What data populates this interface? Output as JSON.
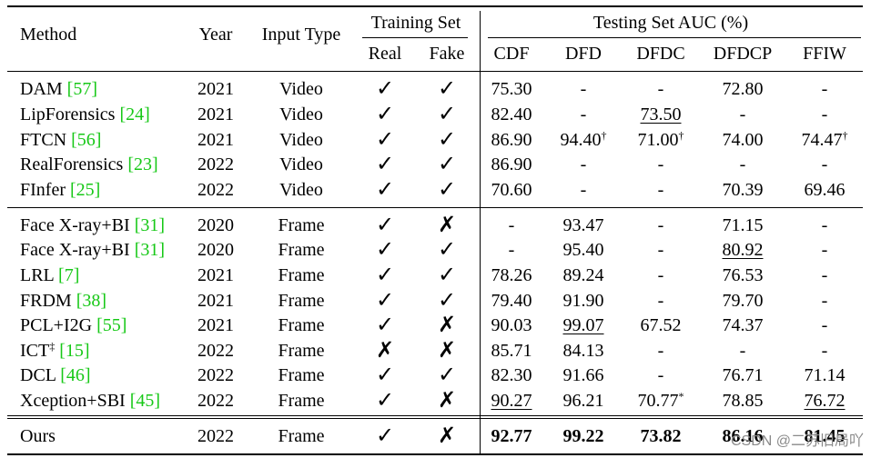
{
  "header": {
    "method": "Method",
    "year": "Year",
    "input_type": "Input Type",
    "training_set": "Training Set",
    "real": "Real",
    "fake": "Fake",
    "testing_set": "Testing Set AUC (%)",
    "datasets": [
      "CDF",
      "DFD",
      "DFDC",
      "DFDCP",
      "FFIW"
    ]
  },
  "video_rows": [
    {
      "method": "DAM ",
      "cite": "[57]",
      "year": "2021",
      "input": "Video",
      "real": "✓",
      "fake": "✓",
      "cdf": "75.30",
      "dfd": "-",
      "dfdc": "-",
      "dfdcp": "72.80",
      "ffiw": "-"
    },
    {
      "method": "LipForensics ",
      "cite": "[24]",
      "year": "2021",
      "input": "Video",
      "real": "✓",
      "fake": "✓",
      "cdf": "82.40",
      "dfd": "-",
      "dfdc": "73.50",
      "dfdcp": "-",
      "ffiw": "-"
    },
    {
      "method": "FTCN  ",
      "cite": "[56]",
      "year": "2021",
      "input": "Video",
      "real": "✓",
      "fake": "✓",
      "cdf": "86.90",
      "dfd": "94.40",
      "dfd_sup": "†",
      "dfdc": "71.00",
      "dfdc_sup": "†",
      "dfdcp": "74.00",
      "ffiw": "74.47",
      "ffiw_sup": "†"
    },
    {
      "method": "RealForensics ",
      "cite": "[23]",
      "year": "2022",
      "input": "Video",
      "real": "✓",
      "fake": "✓",
      "cdf": "86.90",
      "dfd": "-",
      "dfdc": "-",
      "dfdcp": "-",
      "ffiw": "-"
    },
    {
      "method": "FInfer ",
      "cite": "[25]",
      "year": "2022",
      "input": "Video",
      "real": "✓",
      "fake": "✓",
      "cdf": "70.60",
      "dfd": "-",
      "dfdc": "-",
      "dfdcp": "70.39",
      "ffiw": "69.46"
    }
  ],
  "frame_rows": [
    {
      "method": "Face X-ray+BI ",
      "cite": "[31]",
      "year": "2020",
      "input": "Frame",
      "real": "✓",
      "fake": "✗",
      "cdf": "-",
      "dfd": "93.47",
      "dfdc": "-",
      "dfdcp": "71.15",
      "ffiw": "-"
    },
    {
      "method": "Face X-ray+BI ",
      "cite": "[31]",
      "year": "2020",
      "input": "Frame",
      "real": "✓",
      "fake": "✓",
      "cdf": "-",
      "dfd": "95.40",
      "dfdc": "-",
      "dfdcp": "80.92",
      "ffiw": "-"
    },
    {
      "method": "LRL ",
      "cite": "[7]",
      "year": "2021",
      "input": "Frame",
      "real": "✓",
      "fake": "✓",
      "cdf": "78.26",
      "dfd": "89.24",
      "dfdc": "-",
      "dfdcp": "76.53",
      "ffiw": "-"
    },
    {
      "method": "FRDM ",
      "cite": "[38]",
      "year": "2021",
      "input": "Frame",
      "real": "✓",
      "fake": "✓",
      "cdf": "79.40",
      "dfd": "91.90",
      "dfdc": "-",
      "dfdcp": "79.70",
      "ffiw": "-"
    },
    {
      "method": "PCL+I2G ",
      "cite": "[55]",
      "year": "2021",
      "input": "Frame",
      "real": "✓",
      "fake": "✗",
      "cdf": "90.03",
      "dfd": "99.07",
      "dfdc": "67.52",
      "dfdcp": "74.37",
      "ffiw": "-"
    },
    {
      "method": "ICT",
      "method_sup": "‡",
      "method_space": " ",
      "cite": "[15]",
      "year": "2022",
      "input": "Frame",
      "real": "✗",
      "fake": "✗",
      "cdf": "85.71",
      "dfd": "84.13",
      "dfdc": "-",
      "dfdcp": "-",
      "ffiw": "-"
    },
    {
      "method": "DCL ",
      "cite": "[46]",
      "year": "2022",
      "input": "Frame",
      "real": "✓",
      "fake": "✓",
      "cdf": "82.30",
      "dfd": "91.66",
      "dfdc": "-",
      "dfdcp": "76.71",
      "ffiw": "71.14"
    },
    {
      "method": "Xception+SBI ",
      "cite": "[45]",
      "year": "2022",
      "input": "Frame",
      "real": "✓",
      "fake": "✗",
      "cdf": "90.27",
      "dfd": "96.21",
      "dfdc": "70.77",
      "dfdc_sup": "*",
      "dfdcp": "78.85",
      "ffiw": "76.72"
    }
  ],
  "ours": {
    "method": "Ours",
    "year": "2022",
    "input": "Frame",
    "real": "✓",
    "fake": "✗",
    "cdf": "92.77",
    "dfd": "99.22",
    "dfdc": "73.82",
    "dfdcp": "86.16",
    "ffiw": "81.45"
  },
  "watermark": "CSDN @二苏旧局吖"
}
